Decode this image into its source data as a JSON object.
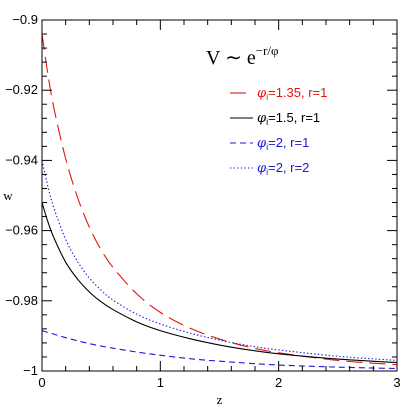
{
  "chart_data": {
    "type": "line",
    "title": "",
    "xlabel": "z",
    "ylabel": "w",
    "xlim": [
      0,
      3
    ],
    "ylim": [
      -1,
      -0.9
    ],
    "xticks": [
      0,
      1,
      2,
      3
    ],
    "xtick_labels": [
      "0",
      "1",
      "2",
      "3"
    ],
    "yticks": [
      -1,
      -0.98,
      -0.96,
      -0.94,
      -0.92,
      -0.9
    ],
    "ytick_labels": [
      "−1",
      "−0.98",
      "−0.96",
      "−0.94",
      "−0.92",
      "−0.9"
    ],
    "annotation": {
      "base": "V ∼ e",
      "exponent": "−r/φ"
    },
    "legend_position": "top-right",
    "series": [
      {
        "name_greek": "φ",
        "name_sub": "i",
        "name_rest": "=1.35,  r=1",
        "color": "#e8130f",
        "dash": "long-dash",
        "x": [
          0,
          0.05,
          0.1,
          0.2,
          0.3,
          0.4,
          0.5,
          0.6,
          0.8,
          1.0,
          1.25,
          1.5,
          1.75,
          2.0,
          2.5,
          3.0
        ],
        "y": [
          -0.904,
          -0.9155,
          -0.925,
          -0.9395,
          -0.9505,
          -0.959,
          -0.9655,
          -0.9705,
          -0.978,
          -0.9833,
          -0.9878,
          -0.9909,
          -0.9932,
          -0.9948,
          -0.997,
          -0.9982
        ]
      },
      {
        "name_greek": "φ",
        "name_sub": "i",
        "name_rest": "=1.5,  r=1",
        "color": "#000000",
        "dash": "solid",
        "x": [
          0,
          0.05,
          0.1,
          0.2,
          0.3,
          0.4,
          0.5,
          0.6,
          0.8,
          1.0,
          1.25,
          1.5,
          1.75,
          2.0,
          2.5,
          3.0
        ],
        "y": [
          -0.952,
          -0.9575,
          -0.962,
          -0.969,
          -0.9738,
          -0.9775,
          -0.9803,
          -0.9825,
          -0.986,
          -0.9885,
          -0.9908,
          -0.9926,
          -0.994,
          -0.9951,
          -0.9966,
          -0.9976
        ]
      },
      {
        "name_greek": "φ",
        "name_sub": "i",
        "name_rest": "=2,  r=1",
        "color": "#1a1adb",
        "dash": "short-dash",
        "x": [
          0,
          0.1,
          0.2,
          0.3,
          0.4,
          0.5,
          0.6,
          0.8,
          1.0,
          1.25,
          1.5,
          1.75,
          2.0,
          2.5,
          3.0
        ],
        "y": [
          -0.9885,
          -0.9895,
          -0.9905,
          -0.9914,
          -0.9922,
          -0.9929,
          -0.9935,
          -0.9946,
          -0.9955,
          -0.9965,
          -0.9972,
          -0.9978,
          -0.9983,
          -0.9989,
          -0.9993
        ]
      },
      {
        "name_greek": "φ",
        "name_sub": "i",
        "name_rest": "=2,  r=2",
        "color": "#1a1adb",
        "dash": "dotted",
        "x": [
          0,
          0.05,
          0.1,
          0.2,
          0.3,
          0.4,
          0.5,
          0.6,
          0.8,
          1.0,
          1.25,
          1.5,
          1.75,
          2.0,
          2.5,
          3.0
        ],
        "y": [
          -0.94,
          -0.9475,
          -0.9535,
          -0.9625,
          -0.9688,
          -0.9735,
          -0.977,
          -0.9798,
          -0.9838,
          -0.9866,
          -0.9892,
          -0.9912,
          -0.9928,
          -0.994,
          -0.9958,
          -0.997
        ]
      }
    ]
  }
}
